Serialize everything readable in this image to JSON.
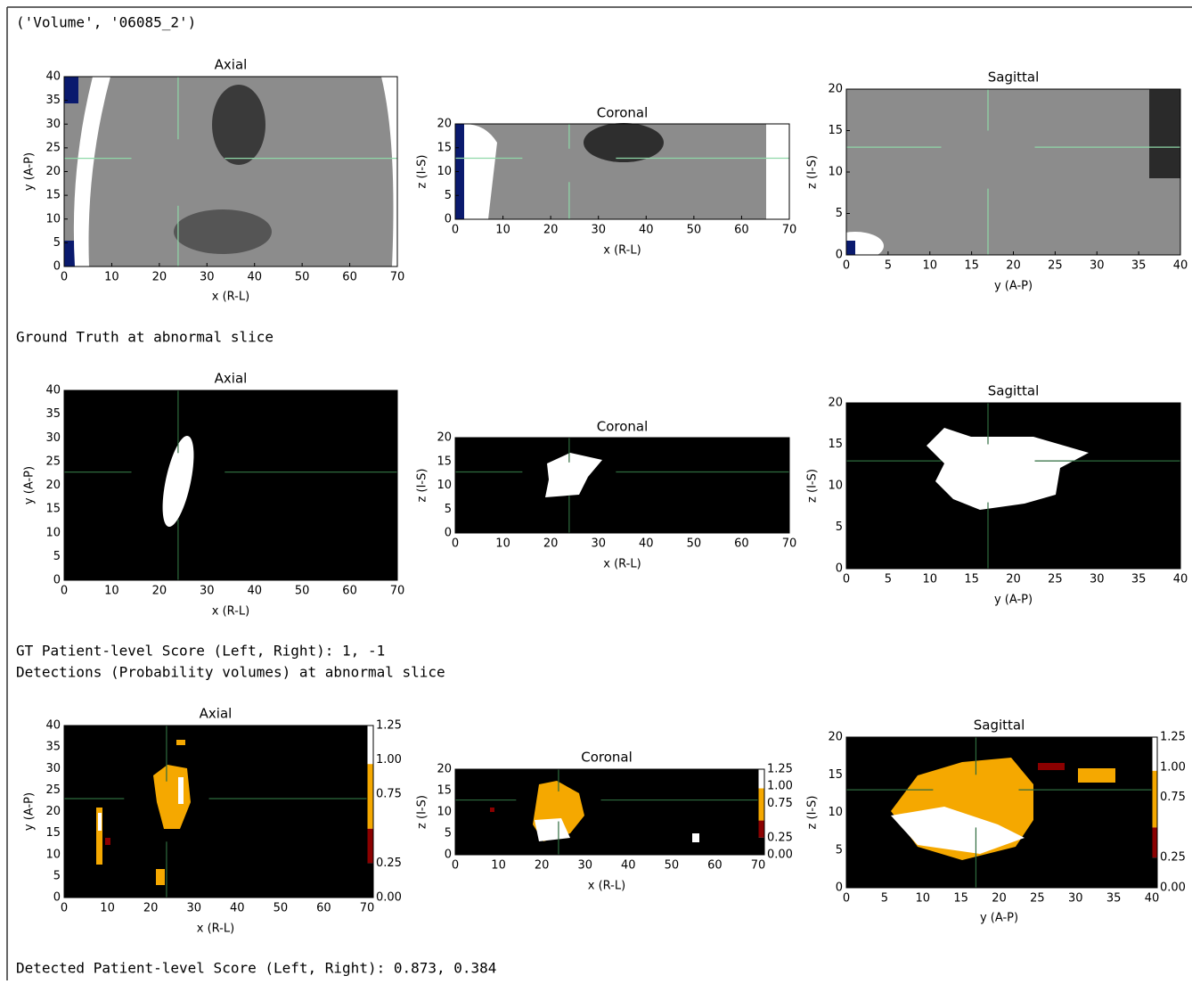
{
  "cells": {
    "volume": "('Volume', '06085_2')",
    "gt_heading": "Ground Truth at abnormal slice",
    "gt_score": "GT Patient-level Score (Left, Right): 1, -1",
    "det_heading": "Detections (Probability volumes) at abnormal slice",
    "det_score": "Detected Patient-level Score (Left, Right): 0.873, 0.384"
  },
  "figures": [
    {
      "panels": [
        {
          "title": "Axial",
          "xlabel": "x (R-L)",
          "ylabel": "y (A-P)",
          "xticks": [
            0,
            10,
            20,
            30,
            40,
            50,
            60,
            70
          ],
          "yticks": [
            0,
            5,
            10,
            15,
            20,
            25,
            30,
            35,
            40
          ]
        },
        {
          "title": "Coronal",
          "xlabel": "x (R-L)",
          "ylabel": "z (I-S)",
          "xticks": [
            0,
            10,
            20,
            30,
            40,
            50,
            60,
            70
          ],
          "yticks": [
            0,
            5,
            10,
            15,
            20
          ]
        },
        {
          "title": "Sagittal",
          "xlabel": "y (A-P)",
          "ylabel": "z (I-S)",
          "xticks": [
            0,
            5,
            10,
            15,
            20,
            25,
            30,
            35,
            40
          ],
          "yticks": [
            0,
            5,
            10,
            15,
            20
          ]
        }
      ]
    },
    {
      "panels": [
        {
          "title": "Axial",
          "xlabel": "x (R-L)",
          "ylabel": "y (A-P)",
          "xticks": [
            0,
            10,
            20,
            30,
            40,
            50,
            60,
            70
          ],
          "yticks": [
            0,
            5,
            10,
            15,
            20,
            25,
            30,
            35,
            40
          ]
        },
        {
          "title": "Coronal",
          "xlabel": "x (R-L)",
          "ylabel": "z (I-S)",
          "xticks": [
            0,
            10,
            20,
            30,
            40,
            50,
            60,
            70
          ],
          "yticks": [
            0,
            5,
            10,
            15,
            20
          ]
        },
        {
          "title": "Sagittal",
          "xlabel": "y (A-P)",
          "ylabel": "z (I-S)",
          "xticks": [
            0,
            5,
            10,
            15,
            20,
            25,
            30,
            35,
            40
          ],
          "yticks": [
            0,
            5,
            10,
            15,
            20
          ]
        }
      ]
    },
    {
      "panels": [
        {
          "title": "Axial",
          "xlabel": "x (R-L)",
          "ylabel": "y (A-P)",
          "xticks": [
            0,
            10,
            20,
            30,
            40,
            50,
            60,
            70
          ],
          "yticks": [
            0,
            5,
            10,
            15,
            20,
            25,
            30,
            35,
            40
          ],
          "colorbar_ticks": [
            "1.25",
            "1.00",
            "0.75",
            "0.25",
            "0.00"
          ]
        },
        {
          "title": "Coronal",
          "xlabel": "x (R-L)",
          "ylabel": "z (I-S)",
          "xticks": [
            0,
            10,
            20,
            30,
            40,
            50,
            60,
            70
          ],
          "yticks": [
            0,
            5,
            10,
            15,
            20
          ],
          "colorbar_ticks": [
            "1.25",
            "1.00",
            "0.75",
            "0.25",
            "0.00"
          ]
        },
        {
          "title": "Sagittal",
          "xlabel": "y (A-P)",
          "ylabel": "z (I-S)",
          "xticks": [
            0,
            5,
            10,
            15,
            20,
            25,
            30,
            35,
            40
          ],
          "yticks": [
            0,
            5,
            10,
            15,
            20
          ],
          "colorbar_ticks": [
            "1.25",
            "1.00",
            "0.75",
            "0.25",
            "0.00"
          ]
        }
      ]
    }
  ]
}
